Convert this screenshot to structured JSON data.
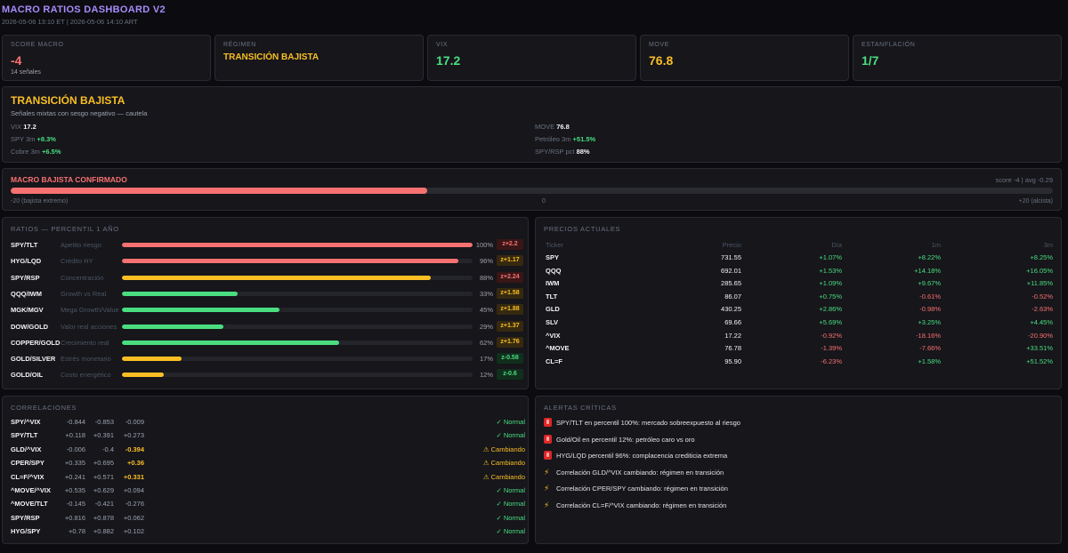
{
  "header": {
    "title": "MACRO RATIOS DASHBOARD V2",
    "subtitle": "2026-05-06 13:10 ET  |  2026-05-06 14:10 ART"
  },
  "stats": {
    "score": {
      "label": "SCORE MACRO",
      "value": "-4",
      "sub": "14 señales"
    },
    "regimen": {
      "label": "RÉGIMEN",
      "value": "TRANSICIÓN BAJISTA"
    },
    "vix": {
      "label": "VIX",
      "value": "17.2"
    },
    "move": {
      "label": "MOVE",
      "value": "76.8"
    },
    "estanflacion": {
      "label": "ESTANFLACIÓN",
      "value": "1/7"
    }
  },
  "regime": {
    "title": "TRANSICIÓN BAJISTA",
    "subtitle": "Señales mixtas con sesgo negativo — cautela",
    "items": [
      {
        "label": "VIX",
        "value": "17.2"
      },
      {
        "label": "SPY 3m",
        "value": "+8.3%"
      },
      {
        "label": "Cobre 3m",
        "value": "+6.5%"
      },
      {
        "label": "MOVE",
        "value": "76.8"
      },
      {
        "label": "Petróleo 3m",
        "value": "+51.5%"
      },
      {
        "label": "SPY/RSP pct",
        "value": "88%"
      }
    ]
  },
  "macro": {
    "title": "MACRO BAJISTA CONFIRMADO",
    "score_text": "score -4  |  avg -0.29",
    "fill_fraction": 0.4,
    "scale_left": "-20 (bajista extremo)",
    "scale_mid": "0",
    "scale_right": "+20 (alcista)"
  },
  "ratios": {
    "title": "RATIOS — PERCENTIL 1 AÑO",
    "rows": [
      {
        "name": "SPY/TLT",
        "desc": "Apetito riesgo",
        "pct": 100,
        "pct_label": "100%",
        "z": "z+2.2",
        "color": "#f87171",
        "zcls": "z-red"
      },
      {
        "name": "HYG/LQD",
        "desc": "Crédito HY",
        "pct": 96,
        "pct_label": "96%",
        "z": "z+1.17",
        "color": "#f87171",
        "zcls": "z-amber"
      },
      {
        "name": "SPY/RSP",
        "desc": "Concentración",
        "pct": 88,
        "pct_label": "88%",
        "z": "z+2.24",
        "color": "#fbbf24",
        "zcls": "z-red"
      },
      {
        "name": "QQQ/IWM",
        "desc": "Growth vs Real",
        "pct": 33,
        "pct_label": "33%",
        "z": "z+1.58",
        "color": "#4ade80",
        "zcls": "z-amber"
      },
      {
        "name": "MGK/MGV",
        "desc": "Mega Growth/Value",
        "pct": 45,
        "pct_label": "45%",
        "z": "z+1.88",
        "color": "#4ade80",
        "zcls": "z-amber"
      },
      {
        "name": "DOW/GOLD",
        "desc": "Valor real acciones",
        "pct": 29,
        "pct_label": "29%",
        "z": "z+1.37",
        "color": "#4ade80",
        "zcls": "z-amber"
      },
      {
        "name": "COPPER/GOLD",
        "desc": "Crecimiento real",
        "pct": 62,
        "pct_label": "62%",
        "z": "z+1.76",
        "color": "#4ade80",
        "zcls": "z-amber"
      },
      {
        "name": "GOLD/SILVER",
        "desc": "Estrés monetario",
        "pct": 17,
        "pct_label": "17%",
        "z": "z-0.58",
        "color": "#fbbf24",
        "zcls": "z-green"
      },
      {
        "name": "GOLD/OIL",
        "desc": "Costo energético",
        "pct": 12,
        "pct_label": "12%",
        "z": "z-0.6",
        "color": "#fbbf24",
        "zcls": "z-green"
      }
    ]
  },
  "prices": {
    "title": "PRECIOS ACTUALES",
    "headers": {
      "ticker": "Ticker",
      "precio": "Precio",
      "dia": "Día",
      "m1": "1m",
      "m3": "3m"
    },
    "rows": [
      {
        "ticker": "SPY",
        "precio": "731.55",
        "dia": "+1.07%",
        "m1": "+8.22%",
        "m3": "+8.25%"
      },
      {
        "ticker": "QQQ",
        "precio": "692.01",
        "dia": "+1.53%",
        "m1": "+14.18%",
        "m3": "+16.05%"
      },
      {
        "ticker": "IWM",
        "precio": "285.65",
        "dia": "+1.09%",
        "m1": "+9.67%",
        "m3": "+11.85%"
      },
      {
        "ticker": "TLT",
        "precio": "86.07",
        "dia": "+0.75%",
        "m1": "-0.61%",
        "m3": "-0.52%"
      },
      {
        "ticker": "GLD",
        "precio": "430.25",
        "dia": "+2.86%",
        "m1": "-0.98%",
        "m3": "-2.63%"
      },
      {
        "ticker": "SLV",
        "precio": "69.66",
        "dia": "+5.69%",
        "m1": "+3.25%",
        "m3": "+4.45%"
      },
      {
        "ticker": "^VIX",
        "precio": "17.22",
        "dia": "-0.92%",
        "m1": "-18.16%",
        "m3": "-20.90%"
      },
      {
        "ticker": "^MOVE",
        "precio": "76.78",
        "dia": "-1.39%",
        "m1": "-7.66%",
        "m3": "+33.51%"
      },
      {
        "ticker": "CL=F",
        "precio": "95.90",
        "dia": "-6.23%",
        "m1": "+1.58%",
        "m3": "+51.52%"
      }
    ]
  },
  "correlations": {
    "title": "CORRELACIONES",
    "rows": [
      {
        "name": "SPY/^VIX",
        "a": "-0.844",
        "b": "-0.853",
        "c": "-0.009",
        "status": "✓ Normal",
        "warn": false
      },
      {
        "name": "SPY/TLT",
        "a": "+0.118",
        "b": "+0.391",
        "c": "+0.273",
        "status": "✓ Normal",
        "warn": false
      },
      {
        "name": "GLD/^VIX",
        "a": "-0.006",
        "b": "-0.4",
        "c": "-0.394",
        "status": "⚠ Cambiando",
        "warn": true
      },
      {
        "name": "CPER/SPY",
        "a": "+0.335",
        "b": "+0.695",
        "c": "+0.36",
        "status": "⚠ Cambiando",
        "warn": true
      },
      {
        "name": "CL=F/^VIX",
        "a": "+0.241",
        "b": "+0.571",
        "c": "+0.331",
        "status": "⚠ Cambiando",
        "warn": true
      },
      {
        "name": "^MOVE/^VIX",
        "a": "+0.535",
        "b": "+0.629",
        "c": "+0.094",
        "status": "✓ Normal",
        "warn": false
      },
      {
        "name": "^MOVE/TLT",
        "a": "-0.145",
        "b": "-0.421",
        "c": "-0.276",
        "status": "✓ Normal",
        "warn": false
      },
      {
        "name": "SPY/RSP",
        "a": "+0.816",
        "b": "+0.878",
        "c": "+0.062",
        "status": "✓ Normal",
        "warn": false
      },
      {
        "name": "HYG/SPY",
        "a": "+0.78",
        "b": "+0.882",
        "c": "+0.102",
        "status": "✓ Normal",
        "warn": false
      }
    ]
  },
  "alerts": {
    "title": "ALERTAS CRÍTICAS",
    "items": [
      {
        "icon": "alarm-icon",
        "text": "SPY/TLT en percentil 100%: mercado sobreexpuesto al riesgo"
      },
      {
        "icon": "alarm-icon",
        "text": "Gold/Oil en percentil 12%: petróleo caro vs oro"
      },
      {
        "icon": "alarm-icon",
        "text": "HYG/LQD percentil 96%: complacencia crediticia extrema"
      },
      {
        "icon": "lightning-icon",
        "text": "Correlación GLD/^VIX cambiando: régimen en transición"
      },
      {
        "icon": "lightning-icon",
        "text": "Correlación CPER/SPY cambiando: régimen en transición"
      },
      {
        "icon": "lightning-icon",
        "text": "Correlación CL=F/^VIX cambiando: régimen en transición"
      }
    ]
  }
}
